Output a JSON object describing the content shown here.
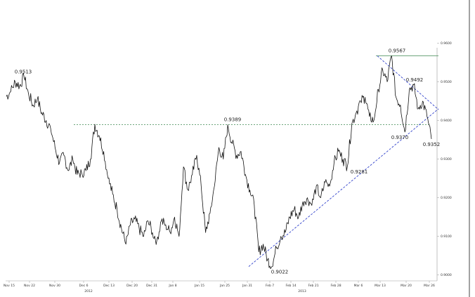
{
  "chart_data": {
    "type": "line",
    "title": "",
    "xlabel": "",
    "ylabel": "",
    "ylim": [
      0.8985,
      0.9588
    ],
    "grid": false,
    "y_ticks": [
      "0.9600",
      "0.9500",
      "0.9400",
      "0.9300",
      "0.9200",
      "0.9100",
      "0.9000"
    ],
    "x_ticks": [
      "Nov 15",
      "Nov 22",
      "Nov 30",
      "Dec 6",
      "Dec 13",
      "Dec 20",
      "Dec 31",
      "Jan 8",
      "Jan 15",
      "Jan 25",
      "Jan 31",
      "Feb 7",
      "Feb 14",
      "Feb 21",
      "Feb 28",
      "Mar 6",
      "Mar 13",
      "Mar 20",
      "Mar 26"
    ],
    "year_labels": [
      "2012",
      "2013"
    ],
    "annotations": [
      {
        "text": "0.9513",
        "x": "Nov 15",
        "y": 0.9513
      },
      {
        "text": "0.9389",
        "x": "Jan 15",
        "y": 0.9389
      },
      {
        "text": "0.9022",
        "x": "Jan 31",
        "y": 0.9022
      },
      {
        "text": "0.9281",
        "x": "Feb 28",
        "y": 0.9281
      },
      {
        "text": "0.9567",
        "x": "Mar 6",
        "y": 0.9567
      },
      {
        "text": "0.9370",
        "x": "Mar 13",
        "y": 0.937
      },
      {
        "text": "0.9492",
        "x": "Mar 20",
        "y": 0.9492
      },
      {
        "text": "0.9352",
        "x": "Mar 26",
        "y": 0.9352
      }
    ],
    "horizontal_levels": [
      0.9389,
      0.9567
    ],
    "trendlines": [
      {
        "from": {
          "x": "Jan 31",
          "y": 0.9022
        },
        "to": {
          "x": "Mar 26",
          "y": 0.943
        }
      },
      {
        "from": {
          "x": "Mar 13",
          "y": 0.9567
        },
        "to": {
          "x": "Mar 26",
          "y": 0.9428
        }
      }
    ],
    "series": [
      {
        "values": [
          0.9462,
          0.9475,
          0.95,
          0.949,
          0.9513,
          0.947,
          0.944,
          0.9455,
          0.942,
          0.94,
          0.938,
          0.933,
          0.929,
          0.931,
          0.927,
          0.93,
          0.926,
          0.9265,
          0.927,
          0.93,
          0.939,
          0.936,
          0.932,
          0.925,
          0.921,
          0.917,
          0.912,
          0.908,
          0.913,
          0.9145,
          0.912,
          0.91,
          0.914,
          0.911,
          0.909,
          0.914,
          0.913,
          0.911,
          0.915,
          0.91,
          0.928,
          0.922,
          0.926,
          0.931,
          0.923,
          0.911,
          0.916,
          0.923,
          0.933,
          0.93,
          0.9389,
          0.934,
          0.931,
          0.932,
          0.926,
          0.922,
          0.918,
          0.906,
          0.908,
          0.904,
          0.9022,
          0.907,
          0.91,
          0.911,
          0.915,
          0.917,
          0.915,
          0.919,
          0.92,
          0.918,
          0.923,
          0.92,
          0.924,
          0.923,
          0.929,
          0.932,
          0.93,
          0.9281,
          0.939,
          0.942,
          0.945,
          0.946,
          0.941,
          0.94,
          0.948,
          0.953,
          0.95,
          0.9567,
          0.946,
          0.944,
          0.937,
          0.948,
          0.9492,
          0.943,
          0.945,
          0.941,
          0.9352
        ]
      }
    ]
  }
}
